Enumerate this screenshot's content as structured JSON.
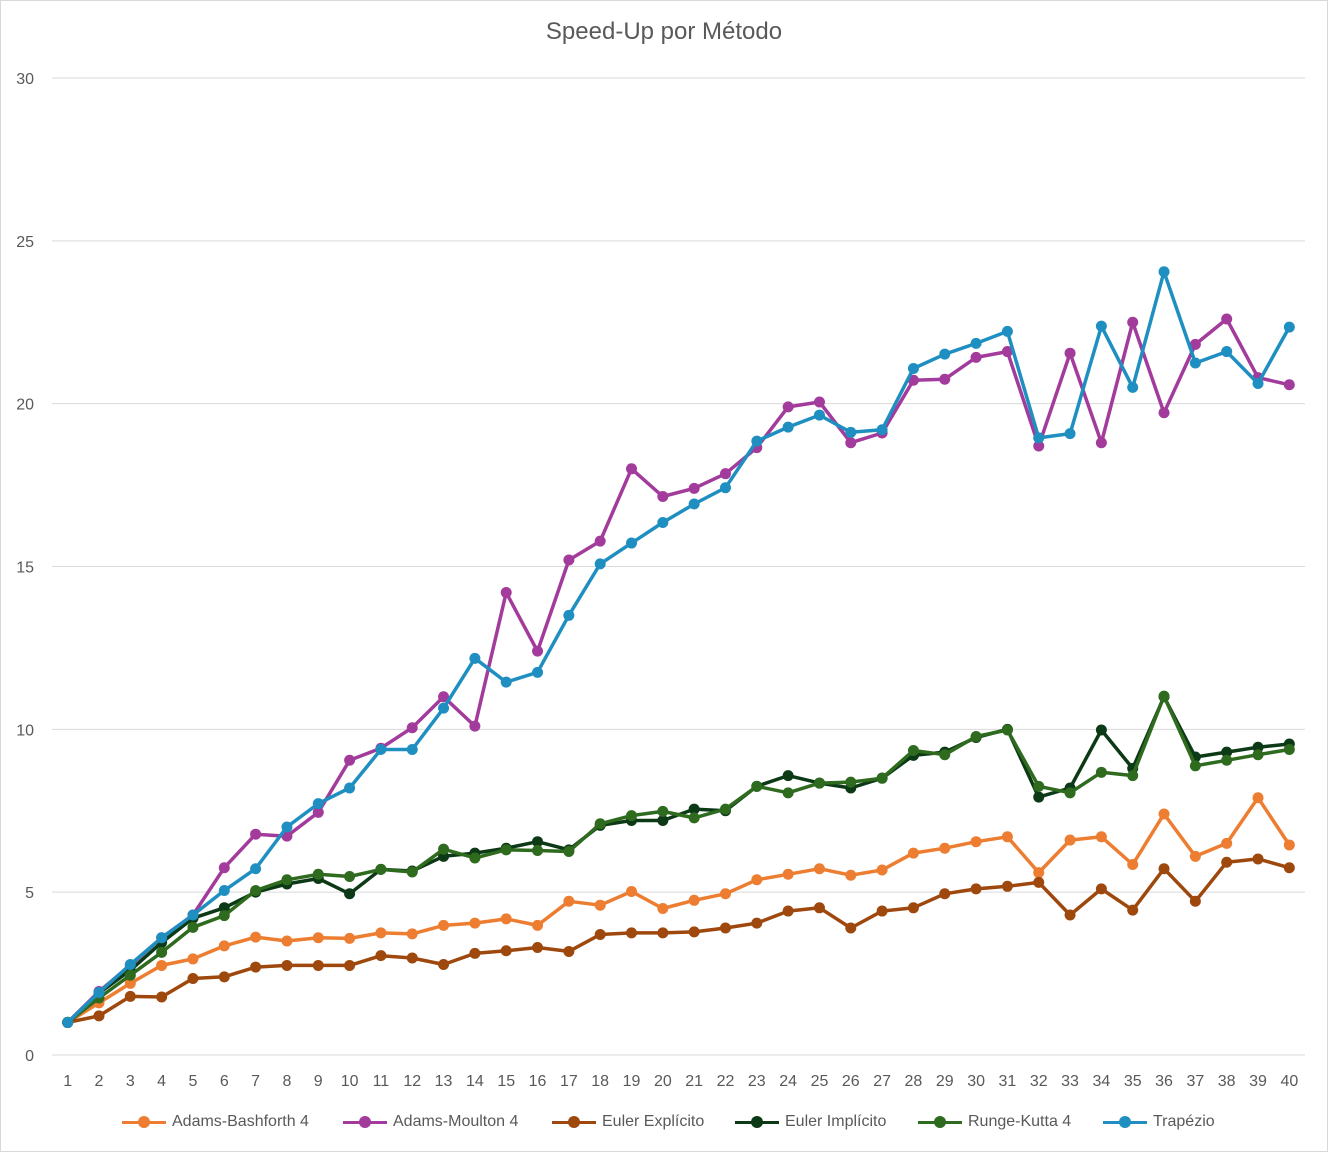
{
  "chart_data": {
    "type": "line",
    "title": "Speed-Up por Método",
    "xlabel": "",
    "ylabel": "",
    "ylim": [
      0,
      30
    ],
    "yticks": [
      "0",
      "5",
      "10",
      "15",
      "20",
      "25",
      "30"
    ],
    "grid": true,
    "legend_position": "bottom",
    "categories": [
      "1",
      "2",
      "3",
      "4",
      "5",
      "6",
      "7",
      "8",
      "9",
      "10",
      "11",
      "12",
      "13",
      "14",
      "15",
      "16",
      "17",
      "18",
      "19",
      "20",
      "21",
      "22",
      "23",
      "24",
      "25",
      "26",
      "27",
      "28",
      "29",
      "30",
      "31",
      "32",
      "33",
      "34",
      "35",
      "36",
      "37",
      "38",
      "39",
      "40"
    ],
    "series": [
      {
        "name": "Adams-Bashforth 4",
        "color": "#ed7d31",
        "values": [
          1.0,
          1.6,
          2.2,
          2.75,
          2.95,
          3.35,
          3.62,
          3.5,
          3.6,
          3.58,
          3.75,
          3.72,
          3.98,
          4.05,
          4.18,
          3.98,
          4.72,
          4.6,
          5.02,
          4.5,
          4.75,
          4.95,
          5.38,
          5.55,
          5.72,
          5.52,
          5.68,
          6.2,
          6.35,
          6.55,
          6.7,
          5.6,
          6.6,
          6.7,
          5.85,
          7.4,
          6.1,
          6.5,
          7.9,
          6.45
        ]
      },
      {
        "name": "Adams-Moulton 4",
        "color": "#a23b9b",
        "values": [
          1.0,
          1.95,
          2.75,
          3.6,
          4.3,
          5.75,
          6.78,
          6.72,
          7.45,
          9.05,
          9.42,
          10.05,
          11.0,
          10.1,
          14.2,
          12.4,
          15.2,
          15.78,
          18.0,
          17.15,
          17.4,
          17.85,
          18.65,
          19.9,
          20.05,
          18.8,
          19.1,
          20.72,
          20.75,
          21.42,
          21.6,
          18.7,
          21.55,
          18.8,
          22.5,
          19.72,
          21.82,
          22.6,
          20.8,
          20.58
        ]
      },
      {
        "name": "Euler Explícito",
        "color": "#9e480e",
        "values": [
          1.0,
          1.2,
          1.8,
          1.78,
          2.35,
          2.4,
          2.7,
          2.75,
          2.75,
          2.75,
          3.05,
          2.98,
          2.78,
          3.12,
          3.2,
          3.3,
          3.18,
          3.7,
          3.75,
          3.75,
          3.78,
          3.9,
          4.05,
          4.42,
          4.52,
          3.9,
          4.42,
          4.52,
          4.95,
          5.1,
          5.18,
          5.3,
          4.3,
          5.1,
          4.45,
          5.72,
          4.72,
          5.92,
          6.02,
          5.75
        ]
      },
      {
        "name": "Euler Implícito",
        "color": "#0d3a16",
        "values": [
          1.0,
          1.9,
          2.6,
          3.45,
          4.2,
          4.52,
          5.0,
          5.25,
          5.42,
          4.95,
          5.7,
          5.65,
          6.1,
          6.2,
          6.35,
          6.55,
          6.3,
          7.05,
          7.2,
          7.2,
          7.55,
          7.5,
          8.25,
          8.58,
          8.35,
          8.2,
          8.5,
          9.2,
          9.3,
          9.75,
          10.0,
          7.92,
          8.2,
          9.98,
          8.8,
          11.0,
          9.15,
          9.3,
          9.45,
          9.55
        ]
      },
      {
        "name": "Runge-Kutta 4",
        "color": "#2e6b1f",
        "values": [
          1.0,
          1.75,
          2.45,
          3.15,
          3.92,
          4.28,
          5.05,
          5.38,
          5.55,
          5.48,
          5.7,
          5.62,
          6.32,
          6.05,
          6.3,
          6.28,
          6.25,
          7.1,
          7.35,
          7.48,
          7.28,
          7.55,
          8.25,
          8.05,
          8.35,
          8.38,
          8.5,
          9.35,
          9.22,
          9.78,
          9.98,
          8.25,
          8.05,
          8.68,
          8.58,
          11.02,
          8.88,
          9.05,
          9.22,
          9.38
        ]
      },
      {
        "name": "Trapézio",
        "color": "#1f8fc1",
        "values": [
          1.0,
          1.92,
          2.78,
          3.6,
          4.3,
          5.05,
          5.72,
          7.0,
          7.72,
          8.2,
          9.38,
          9.38,
          10.65,
          12.18,
          11.45,
          11.75,
          13.5,
          15.08,
          15.72,
          16.35,
          16.92,
          17.42,
          18.85,
          19.28,
          19.65,
          19.12,
          19.2,
          21.08,
          21.52,
          21.85,
          22.22,
          18.95,
          19.08,
          22.38,
          20.5,
          24.05,
          21.25,
          21.6,
          20.62,
          22.35
        ]
      }
    ]
  }
}
